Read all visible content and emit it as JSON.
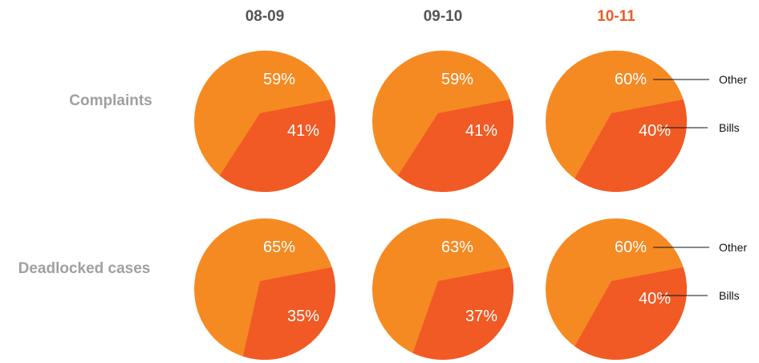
{
  "colors": {
    "other": "#f58a23",
    "bills": "#f15a24",
    "row_label": "#a0a0a0",
    "column_title": "#555555",
    "highlight_title": "#f15a24"
  },
  "chart_data": {
    "type": "pie",
    "title": "",
    "columns": [
      "08-09",
      "09-10",
      "10-11"
    ],
    "highlighted_column": "10-11",
    "rows": [
      "Complaints",
      "Deadlocked cases"
    ],
    "legend": [
      "Other",
      "Bills"
    ],
    "charts": [
      {
        "row": "Complaints",
        "column": "08-09",
        "slices": [
          {
            "label": "Other",
            "value": 59
          },
          {
            "label": "Bills",
            "value": 41
          }
        ]
      },
      {
        "row": "Complaints",
        "column": "09-10",
        "slices": [
          {
            "label": "Other",
            "value": 59
          },
          {
            "label": "Bills",
            "value": 41
          }
        ]
      },
      {
        "row": "Complaints",
        "column": "10-11",
        "slices": [
          {
            "label": "Other",
            "value": 60
          },
          {
            "label": "Bills",
            "value": 40
          }
        ]
      },
      {
        "row": "Deadlocked cases",
        "column": "08-09",
        "slices": [
          {
            "label": "Other",
            "value": 65
          },
          {
            "label": "Bills",
            "value": 35
          }
        ]
      },
      {
        "row": "Deadlocked cases",
        "column": "09-10",
        "slices": [
          {
            "label": "Other",
            "value": 63
          },
          {
            "label": "Bills",
            "value": 37
          }
        ]
      },
      {
        "row": "Deadlocked cases",
        "column": "10-11",
        "slices": [
          {
            "label": "Other",
            "value": 60
          },
          {
            "label": "Bills",
            "value": 40
          }
        ]
      }
    ]
  }
}
